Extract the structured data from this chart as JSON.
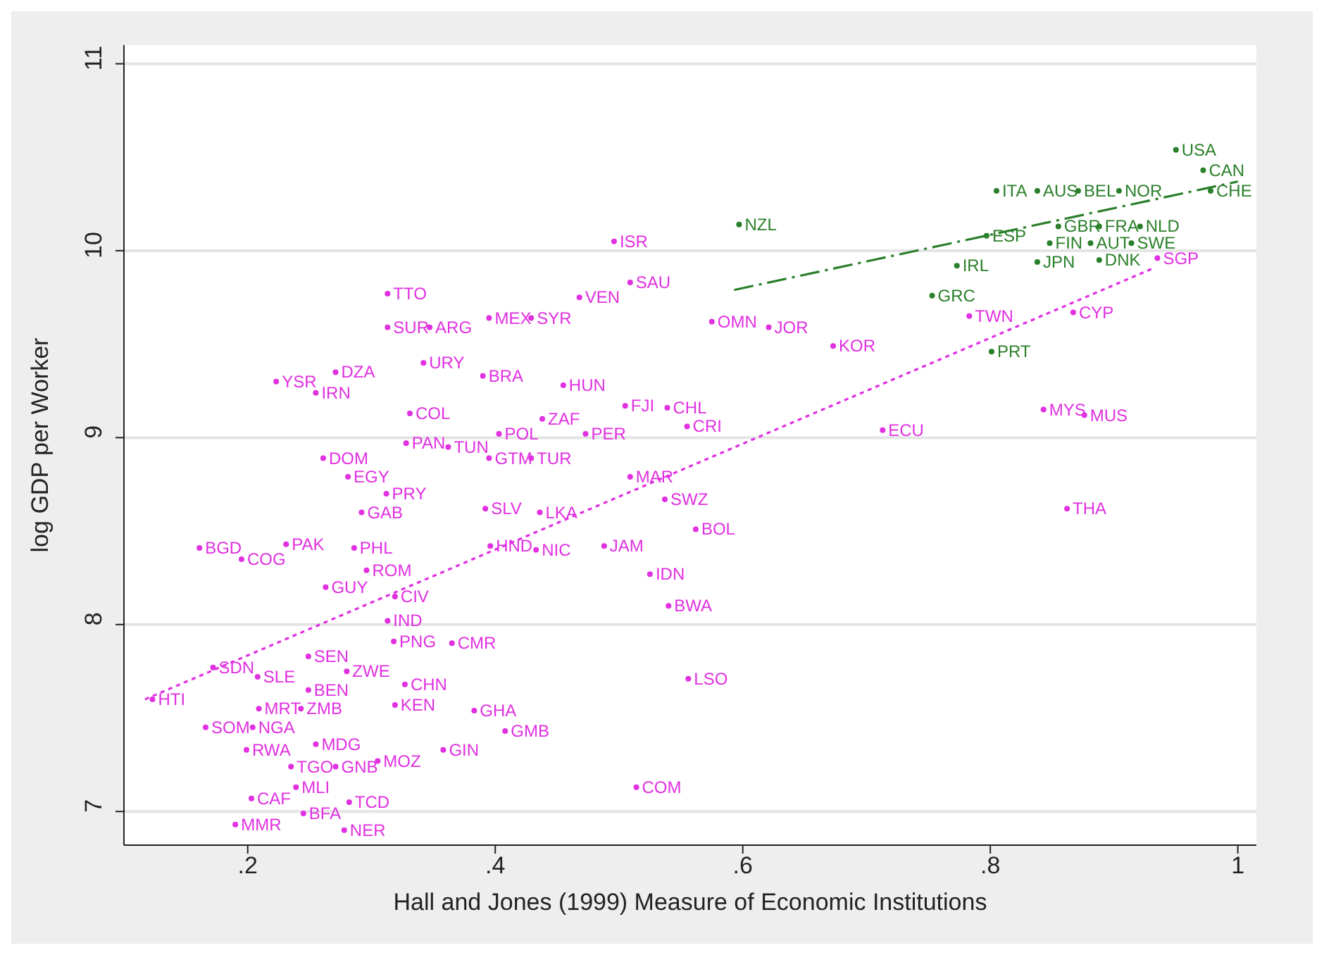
{
  "chart_data": {
    "type": "scatter",
    "xlabel": "Hall and Jones (1999) Measure of Economic Institutions",
    "ylabel": "log GDP per Worker",
    "xlim": [
      0.1,
      1.015
    ],
    "ylim": [
      6.82,
      11.1
    ],
    "xticks": [
      {
        "value": 0.2,
        "label": ".2"
      },
      {
        "value": 0.4,
        "label": ".4"
      },
      {
        "value": 0.6,
        "label": ".6"
      },
      {
        "value": 0.8,
        "label": ".8"
      },
      1
    ],
    "yticks": [
      7,
      8,
      9,
      10,
      11
    ],
    "grid": "y",
    "legend": false,
    "series": [
      {
        "type": "scatter",
        "color": "#e030e0",
        "marker": "circle",
        "x": [
          0.123,
          0.172,
          0.208,
          0.249,
          0.28,
          0.249,
          0.327,
          0.319,
          0.166,
          0.204,
          0.209,
          0.243,
          0.199,
          0.235,
          0.255,
          0.271,
          0.305,
          0.358,
          0.383,
          0.408,
          0.239,
          0.203,
          0.282,
          0.245,
          0.278,
          0.19,
          0.556,
          0.514,
          0.396,
          0.433,
          0.488,
          0.525,
          0.54,
          0.161,
          0.231,
          0.195,
          0.286,
          0.296,
          0.263,
          0.319,
          0.313,
          0.318,
          0.365,
          0.392,
          0.436,
          0.509,
          0.537,
          0.562,
          0.261,
          0.281,
          0.312,
          0.292,
          0.395,
          0.429,
          0.328,
          0.362,
          0.403,
          0.438,
          0.473,
          0.331,
          0.505,
          0.539,
          0.555,
          0.455,
          0.39,
          0.342,
          0.271,
          0.223,
          0.255,
          0.313,
          0.347,
          0.395,
          0.429,
          0.313,
          0.468,
          0.509,
          0.496,
          0.575,
          0.621,
          0.673,
          0.713,
          0.783,
          0.867,
          0.935,
          0.843,
          0.876,
          0.862
        ],
        "values": [
          7.6,
          7.77,
          7.72,
          7.83,
          7.75,
          7.65,
          7.68,
          7.57,
          7.45,
          7.45,
          7.55,
          7.55,
          7.33,
          7.24,
          7.36,
          7.24,
          7.27,
          7.33,
          7.54,
          7.43,
          7.13,
          7.07,
          7.05,
          6.99,
          6.9,
          6.93,
          7.71,
          7.13,
          8.42,
          8.4,
          8.42,
          8.27,
          8.1,
          8.41,
          8.43,
          8.35,
          8.41,
          8.29,
          8.2,
          8.15,
          8.02,
          7.91,
          7.9,
          8.62,
          8.6,
          8.79,
          8.67,
          8.51,
          8.89,
          8.79,
          8.7,
          8.6,
          8.89,
          8.89,
          8.97,
          8.95,
          9.02,
          9.1,
          9.02,
          9.13,
          9.17,
          9.16,
          9.06,
          9.28,
          9.33,
          9.4,
          9.35,
          9.3,
          9.24,
          9.59,
          9.59,
          9.64,
          9.64,
          9.77,
          9.75,
          9.83,
          10.05,
          9.62,
          9.59,
          9.49,
          9.04,
          9.65,
          9.67,
          9.96,
          9.15,
          9.12,
          8.62
        ],
        "value_labels": [
          "HTI",
          "SDN",
          "SLE",
          "SEN",
          "ZWE",
          "BEN",
          "CHN",
          "KEN",
          "SOM",
          "NGA",
          "MRT",
          "ZMB",
          "RWA",
          "TGO",
          "MDG",
          "GNB",
          "MOZ",
          "GIN",
          "GHA",
          "GMB",
          "MLI",
          "CAF",
          "TCD",
          "BFA",
          "NER",
          "MMR",
          "LSO",
          "COM",
          "HND",
          "NIC",
          "JAM",
          "IDN",
          "BWA",
          "BGD",
          "PAK",
          "COG",
          "PHL",
          "ROM",
          "GUY",
          "CIV",
          "IND",
          "PNG",
          "CMR",
          "SLV",
          "LKA",
          "MAR",
          "SWZ",
          "BOL",
          "DOM",
          "EGY",
          "PRY",
          "GAB",
          "GTM",
          "TUR",
          "PAN",
          "TUN",
          "POL",
          "ZAF",
          "PER",
          "COL",
          "FJI",
          "CHL",
          "CRI",
          "HUN",
          "BRA",
          "URY",
          "DZA",
          "YSR",
          "IRN",
          "SUR",
          "ARG",
          "MEX",
          "SYR",
          "TTO",
          "VEN",
          "SAU",
          "ISR",
          "OMN",
          "JOR",
          "KOR",
          "ECU",
          "TWN",
          "CYP",
          "SGP",
          "MYS",
          "MUS",
          "THA"
        ]
      },
      {
        "type": "scatter",
        "color": "#2a7f2a",
        "marker": "circle",
        "x": [
          0.597,
          0.805,
          0.838,
          0.871,
          0.904,
          0.888,
          0.921,
          0.914,
          0.881,
          0.855,
          0.888,
          0.848,
          0.797,
          0.773,
          0.838,
          0.753,
          0.801,
          0.95,
          0.972,
          0.978
        ],
        "values": [
          10.14,
          10.32,
          10.32,
          10.32,
          10.32,
          10.13,
          10.13,
          10.04,
          10.04,
          10.13,
          9.95,
          10.04,
          10.08,
          9.92,
          9.94,
          9.76,
          9.46,
          10.54,
          10.43,
          10.32
        ],
        "value_labels": [
          "NZL",
          "ITA",
          "AUS",
          "BEL",
          "NOR",
          "FRA",
          "NLD",
          "SWE",
          "AUT",
          "GBR",
          "DNK",
          "FIN",
          "ESP",
          "IRL",
          "JPN",
          "GRC",
          "PRT",
          "USA",
          "CAN",
          "CHE"
        ]
      },
      {
        "type": "line",
        "color": "#2a7f2a",
        "line_style": "dashed",
        "marker": "none",
        "x": [
          0.593,
          1.0
        ],
        "values": [
          9.79,
          10.37
        ]
      },
      {
        "type": "line",
        "color": "#e030e0",
        "line_style": "dotted",
        "marker": "none",
        "x": [
          0.117,
          0.933
        ],
        "values": [
          7.6,
          9.91
        ]
      }
    ]
  }
}
